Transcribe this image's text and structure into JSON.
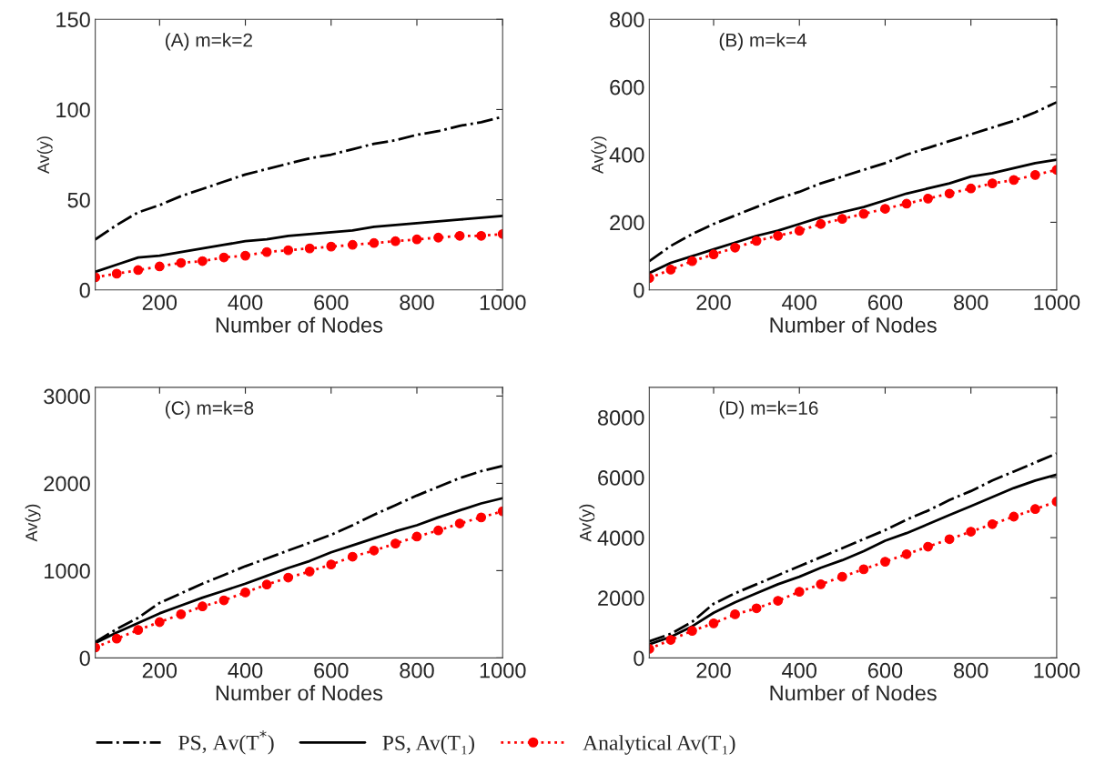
{
  "chart_data": [
    {
      "type": "line",
      "xlabel": "Number of Nodes",
      "ylabel": "Av(y)",
      "annotations": [
        "(A) m=k=2"
      ],
      "x": [
        50,
        100,
        150,
        200,
        250,
        300,
        350,
        400,
        450,
        500,
        550,
        600,
        650,
        700,
        750,
        800,
        850,
        900,
        950,
        1000
      ],
      "xlim": [
        50,
        1000
      ],
      "xticks": [
        200,
        400,
        600,
        800,
        1000
      ],
      "ylim": [
        0,
        150
      ],
      "yticks": [
        0,
        50,
        100,
        150
      ],
      "grid": false,
      "legend": "bottom",
      "series": [
        {
          "name": "PS, Av(T$^{*}$)",
          "color": "#000000",
          "line_style": "dashdot",
          "marker": "none",
          "values": [
            28,
            36,
            43,
            47,
            52,
            56,
            60,
            64,
            67,
            70,
            73,
            75,
            78,
            81,
            83,
            86,
            88,
            91,
            93,
            96
          ]
        },
        {
          "name": "PS, Av(T₁)",
          "color": "#000000",
          "line_style": "solid",
          "marker": "none",
          "values": [
            10,
            14,
            18,
            19,
            21,
            23,
            25,
            27,
            28,
            30,
            31,
            32,
            33,
            35,
            36,
            37,
            38,
            39,
            40,
            41
          ]
        },
        {
          "name": "Analytical Av(T₁)",
          "color": "#ff0000",
          "line_style": "dotted",
          "marker": "circle",
          "values": [
            7,
            9,
            11,
            13,
            15,
            16,
            18,
            19,
            21,
            22,
            23,
            24,
            25,
            26,
            27,
            28,
            29,
            30,
            30,
            31
          ]
        }
      ]
    },
    {
      "type": "line",
      "xlabel": "Number of Nodes",
      "ylabel": "Av(y)",
      "annotations": [
        "(B) m=k=4"
      ],
      "x": [
        50,
        100,
        150,
        200,
        250,
        300,
        350,
        400,
        450,
        500,
        550,
        600,
        650,
        700,
        750,
        800,
        850,
        900,
        950,
        1000
      ],
      "xlim": [
        50,
        1000
      ],
      "xticks": [
        200,
        400,
        600,
        800,
        1000
      ],
      "ylim": [
        0,
        800
      ],
      "yticks": [
        0,
        200,
        400,
        600,
        800
      ],
      "grid": false,
      "series": [
        {
          "color": "#000000",
          "line_style": "dashdot",
          "marker": "none",
          "values": [
            85,
            130,
            165,
            195,
            220,
            245,
            270,
            290,
            315,
            335,
            355,
            375,
            400,
            420,
            440,
            460,
            480,
            500,
            525,
            555
          ]
        },
        {
          "color": "#000000",
          "line_style": "solid",
          "marker": "none",
          "values": [
            50,
            80,
            100,
            120,
            140,
            160,
            175,
            195,
            215,
            230,
            245,
            265,
            285,
            300,
            315,
            335,
            345,
            360,
            375,
            385
          ]
        },
        {
          "color": "#ff0000",
          "line_style": "dotted",
          "marker": "circle",
          "values": [
            35,
            60,
            85,
            105,
            125,
            145,
            160,
            175,
            195,
            210,
            225,
            240,
            255,
            270,
            285,
            300,
            315,
            325,
            340,
            355
          ]
        }
      ]
    },
    {
      "type": "line",
      "xlabel": "Number of Nodes",
      "ylabel": "Av(y)",
      "annotations": [
        "(C) m=k=8"
      ],
      "x": [
        50,
        100,
        150,
        200,
        250,
        300,
        350,
        400,
        450,
        500,
        550,
        600,
        650,
        700,
        750,
        800,
        850,
        900,
        950,
        1000
      ],
      "xlim": [
        50,
        1000
      ],
      "xticks": [
        200,
        400,
        600,
        800,
        1000
      ],
      "ylim": [
        0,
        3100
      ],
      "yticks": [
        0,
        1000,
        2000,
        3000
      ],
      "grid": false,
      "series": [
        {
          "color": "#000000",
          "line_style": "dashdot",
          "marker": "none",
          "values": [
            180,
            330,
            460,
            630,
            740,
            850,
            950,
            1050,
            1140,
            1230,
            1320,
            1410,
            1520,
            1640,
            1750,
            1860,
            1960,
            2060,
            2140,
            2200
          ]
        },
        {
          "color": "#000000",
          "line_style": "solid",
          "marker": "none",
          "values": [
            170,
            290,
            400,
            510,
            600,
            690,
            770,
            850,
            940,
            1030,
            1110,
            1210,
            1290,
            1370,
            1450,
            1520,
            1610,
            1690,
            1770,
            1830
          ]
        },
        {
          "color": "#ff0000",
          "line_style": "dotted",
          "marker": "circle",
          "values": [
            120,
            220,
            320,
            410,
            500,
            590,
            660,
            750,
            840,
            920,
            990,
            1070,
            1160,
            1230,
            1310,
            1390,
            1460,
            1540,
            1610,
            1680
          ]
        }
      ]
    },
    {
      "type": "line",
      "xlabel": "Number of Nodes",
      "ylabel": "Av(y)",
      "annotations": [
        "(D) m=k=16"
      ],
      "x": [
        50,
        100,
        150,
        200,
        250,
        300,
        350,
        400,
        450,
        500,
        550,
        600,
        650,
        700,
        750,
        800,
        850,
        900,
        950,
        1000
      ],
      "xlim": [
        50,
        1000
      ],
      "xticks": [
        200,
        400,
        600,
        800,
        1000
      ],
      "ylim": [
        0,
        9000
      ],
      "yticks": [
        0,
        2000,
        4000,
        6000,
        8000
      ],
      "grid": false,
      "series": [
        {
          "color": "#000000",
          "line_style": "dashdot",
          "marker": "none",
          "values": [
            550,
            800,
            1200,
            1800,
            2150,
            2450,
            2750,
            3050,
            3350,
            3650,
            3950,
            4250,
            4600,
            4900,
            5250,
            5550,
            5900,
            6200,
            6500,
            6800
          ]
        },
        {
          "color": "#000000",
          "line_style": "solid",
          "marker": "none",
          "values": [
            450,
            700,
            1050,
            1500,
            1850,
            2150,
            2450,
            2700,
            3000,
            3250,
            3550,
            3900,
            4150,
            4450,
            4750,
            5050,
            5350,
            5650,
            5900,
            6100
          ]
        },
        {
          "color": "#ff0000",
          "line_style": "dotted",
          "marker": "circle",
          "values": [
            300,
            600,
            900,
            1150,
            1450,
            1650,
            1900,
            2200,
            2450,
            2700,
            2950,
            3200,
            3450,
            3700,
            3950,
            4200,
            4450,
            4700,
            4950,
            5200
          ]
        }
      ]
    }
  ]
}
